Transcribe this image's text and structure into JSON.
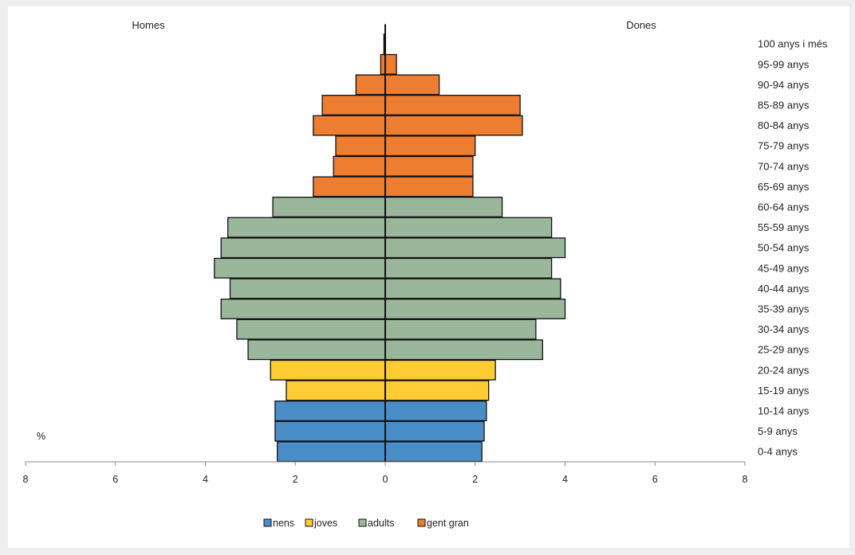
{
  "chart_data": {
    "type": "bar",
    "orientation": "horizontal",
    "variant": "population-pyramid",
    "side_left_label": "Homes",
    "side_right_label": "Dones",
    "unit_label": "%",
    "xlim": [
      -8,
      8
    ],
    "x_ticks": [
      {
        "value": -8,
        "label": "8"
      },
      {
        "value": -6,
        "label": "6"
      },
      {
        "value": -4,
        "label": "4"
      },
      {
        "value": -2,
        "label": "2"
      },
      {
        "value": 0,
        "label": "0"
      },
      {
        "value": 2,
        "label": "2"
      },
      {
        "value": 4,
        "label": "4"
      },
      {
        "value": 6,
        "label": "6"
      },
      {
        "value": 8,
        "label": "8"
      }
    ],
    "categories": [
      "0-4 anys",
      "5-9 anys",
      "10-14 anys",
      "15-19 anys",
      "20-24 anys",
      "25-29 anys",
      "30-34 anys",
      "35-39 anys",
      "40-44 anys",
      "45-49 anys",
      "50-54 anys",
      "55-59 anys",
      "60-64 anys",
      "65-69 anys",
      "70-74 anys",
      "75-79 anys",
      "80-84 anys",
      "85-89 anys",
      "90-94 anys",
      "95-99 anys",
      "100 anys i més"
    ],
    "groups": [
      {
        "name": "nens",
        "color": "#4a8ec8",
        "categories": [
          "0-4 anys",
          "5-9 anys",
          "10-14 anys"
        ]
      },
      {
        "name": "joves",
        "color": "#ffcc33",
        "categories": [
          "15-19 anys",
          "20-24 anys"
        ]
      },
      {
        "name": "adults",
        "color": "#9bb79b",
        "categories": [
          "25-29 anys",
          "30-34 anys",
          "35-39 anys",
          "40-44 anys",
          "45-49 anys",
          "50-54 anys",
          "55-59 anys",
          "60-64 anys"
        ]
      },
      {
        "name": "gent gran",
        "color": "#ed7d31",
        "categories": [
          "65-69 anys",
          "70-74 anys",
          "75-79 anys",
          "80-84 anys",
          "85-89 anys",
          "90-94 anys",
          "95-99 anys",
          "100 anys i més"
        ]
      }
    ],
    "series": [
      {
        "name": "Homes",
        "values": [
          2.4,
          2.45,
          2.45,
          2.2,
          2.55,
          3.05,
          3.3,
          3.65,
          3.45,
          3.8,
          3.65,
          3.5,
          2.5,
          1.6,
          1.15,
          1.1,
          1.6,
          1.4,
          0.65,
          0.1,
          0.03
        ]
      },
      {
        "name": "Dones",
        "values": [
          2.15,
          2.2,
          2.25,
          2.3,
          2.45,
          3.5,
          3.35,
          4.0,
          3.9,
          3.7,
          4.0,
          3.7,
          2.6,
          1.95,
          1.95,
          2.0,
          3.05,
          3.0,
          1.2,
          0.25,
          0.0
        ]
      }
    ],
    "legend": {
      "position": "bottom",
      "items": [
        "nens",
        "joves",
        "adults",
        "gent gran"
      ]
    },
    "grid": false
  }
}
